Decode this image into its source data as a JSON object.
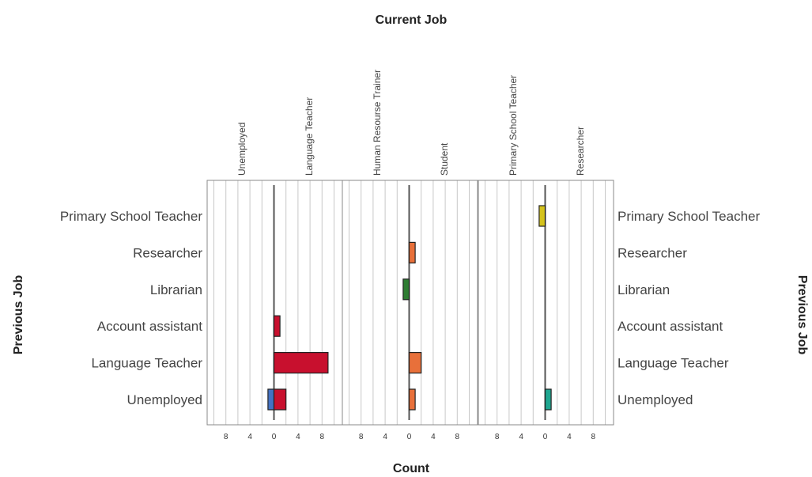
{
  "chart_data": {
    "type": "bar",
    "orientation": "horizontal",
    "layout": "population-pyramid panels",
    "title": "Current Job",
    "xlabel": "Count",
    "ylabel": "Previous Job",
    "categories": [
      "Primary School Teacher",
      "Researcher",
      "Librarian",
      "Account assistant",
      "Language Teacher",
      "Unemployed"
    ],
    "xlim": [
      -10,
      10
    ],
    "x_ticks": [
      8,
      4,
      0,
      4,
      8
    ],
    "grid": true,
    "panels": [
      {
        "left_label": "Unemployed",
        "right_label": "Language Teacher",
        "bars": [
          {
            "category": "Unemployed",
            "side": "left",
            "value": 1,
            "color": "#4472C4"
          },
          {
            "category": "Unemployed",
            "side": "right",
            "value": 2,
            "color": "#C8102E"
          },
          {
            "category": "Language Teacher",
            "side": "right",
            "value": 9,
            "color": "#C8102E"
          },
          {
            "category": "Account assistant",
            "side": "right",
            "value": 1,
            "color": "#C8102E"
          }
        ]
      },
      {
        "left_label": "Human Resourse Trainer",
        "right_label": "Student",
        "bars": [
          {
            "category": "Librarian",
            "side": "left",
            "value": 1,
            "color": "#2E7D32"
          },
          {
            "category": "Researcher",
            "side": "right",
            "value": 1,
            "color": "#E8703A"
          },
          {
            "category": "Language Teacher",
            "side": "right",
            "value": 2,
            "color": "#E8703A"
          },
          {
            "category": "Unemployed",
            "side": "right",
            "value": 1,
            "color": "#E8703A"
          }
        ]
      },
      {
        "left_label": "Primary School Teacher",
        "right_label": "Researcher",
        "bars": [
          {
            "category": "Primary School Teacher",
            "side": "left",
            "value": 1,
            "color": "#D4C21C"
          },
          {
            "category": "Unemployed",
            "side": "right",
            "value": 1,
            "color": "#1FA690"
          }
        ]
      }
    ]
  }
}
